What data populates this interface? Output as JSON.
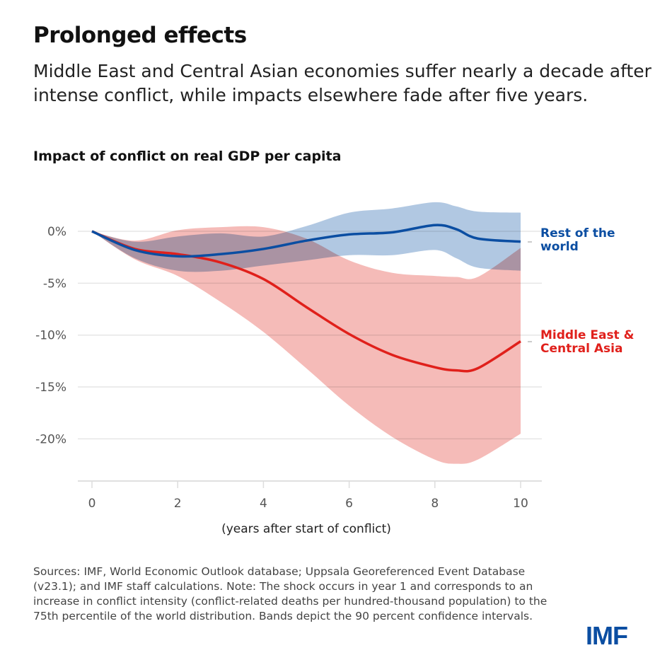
{
  "header": {
    "title": "Prolonged effects",
    "subtitle": "Middle East and Central Asian economies suffer nearly a decade after intense conflict, while impacts elsewhere fade after five years."
  },
  "chart_data": {
    "type": "line",
    "title": "Impact of conflict on real GDP per capita",
    "xlabel": "(years after start of conflict)",
    "ylabel": "",
    "xlim": [
      0,
      10
    ],
    "ylim": [
      -24,
      3
    ],
    "x_ticks": [
      "0",
      "2",
      "4",
      "6",
      "8",
      "10"
    ],
    "y_ticks": [
      "0%",
      "-5%",
      "-10%",
      "-15%",
      "-20%"
    ],
    "y_tick_values": [
      0,
      -5,
      -10,
      -15,
      -20
    ],
    "grid": true,
    "legend": "direct labels at right end of lines",
    "x": [
      0,
      1,
      2,
      3,
      4,
      5,
      6,
      7,
      8,
      8.5,
      9,
      10
    ],
    "series": [
      {
        "name": "Rest of the world",
        "color": "#0b4ea2",
        "band_color": "#a9c2df",
        "values": [
          0,
          -1.8,
          -2.4,
          -2.2,
          -1.7,
          -0.9,
          -0.3,
          -0.1,
          0.6,
          0.2,
          -0.7,
          -1.0
        ],
        "lower": [
          0,
          -2.6,
          -3.8,
          -3.8,
          -3.3,
          -2.8,
          -2.3,
          -2.3,
          -1.8,
          -2.6,
          -3.5,
          -3.8
        ],
        "upper": [
          0,
          -1.0,
          -0.5,
          -0.2,
          -0.5,
          0.5,
          1.8,
          2.2,
          2.8,
          2.4,
          1.9,
          1.8
        ]
      },
      {
        "name": "Middle East & Central Asia",
        "color": "#e0201b",
        "band_color": "#f2aaa6",
        "values": [
          0,
          -1.7,
          -2.2,
          -3.0,
          -4.6,
          -7.3,
          -9.9,
          -11.9,
          -13.1,
          -13.4,
          -13.2,
          -10.6
        ],
        "lower": [
          0,
          -2.7,
          -4.3,
          -6.8,
          -9.7,
          -13.2,
          -16.8,
          -19.8,
          -22.0,
          -22.4,
          -22.0,
          -19.5
        ],
        "upper": [
          0,
          -0.9,
          0.1,
          0.4,
          0.4,
          -0.7,
          -2.8,
          -4.0,
          -4.3,
          -4.4,
          -4.4,
          -1.6
        ]
      }
    ],
    "labels": {
      "rest_line1": "Rest of the",
      "rest_line2": "world",
      "mec_line1": "Middle East &",
      "mec_line2": "Central Asia"
    }
  },
  "footer": {
    "sources": "Sources: IMF, World Economic Outlook database; Uppsala Georeferenced Event Database (v23.1); and IMF staff calculations. Note: The shock occurs in year 1 and corresponds to an increase in conflict intensity (conflict-related deaths per hundred-thousand population) to the 75th percentile of the world distribution. Bands depict the 90 percent confidence intervals.",
    "logo": "IMF"
  }
}
